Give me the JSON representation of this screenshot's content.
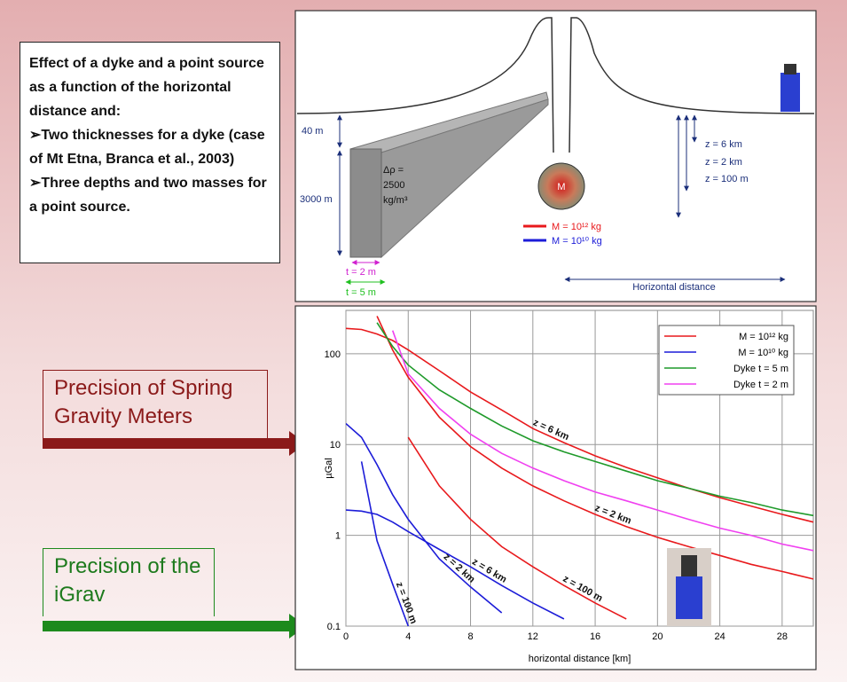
{
  "intro": {
    "heading": "Effect of a dyke and a point source as a function of the horizontal distance and:",
    "bullets": [
      "Two thicknesses for a dyke (case of Mt Etna, Branca et al., 2003)",
      "Three depths and two masses for a point source."
    ]
  },
  "precision_labels": [
    "Precision of Spring Gravity Meters",
    "Precision of the iGrav"
  ],
  "diagram": {
    "depth_top": "40 m",
    "depth_dyke": "3000 m",
    "density": [
      "Δρ =",
      "2500",
      "kg/m³"
    ],
    "mass": "M",
    "thicknesses": [
      "t = 2 m",
      "t = 5 m"
    ],
    "depths": [
      "z = 6 km",
      "z = 2 km",
      "z = 100 m"
    ],
    "masses": [
      "M = 10¹² kg",
      "M = 10¹⁰ kg"
    ],
    "distance": "Horizontal distance"
  },
  "chart_data": {
    "type": "line",
    "y_label": "µGal",
    "x_label": "horizontal distance [km]",
    "log_y": true,
    "grid": true,
    "legend": "upper right",
    "xlim": [
      0,
      30
    ],
    "xticks": [
      0,
      4,
      8,
      12,
      16,
      20,
      24,
      28
    ],
    "ylim": [
      0.1,
      300
    ],
    "yticks": [
      0.1,
      1,
      10,
      100
    ],
    "x": [
      0,
      1,
      2,
      3,
      4,
      6,
      8,
      10,
      12,
      14,
      16,
      18,
      20,
      22,
      24,
      26,
      28,
      30
    ],
    "series": [
      {
        "name": "M = 10¹² kg",
        "color": "#e8191c",
        "curves": [
          {
            "label": "z = 6 km",
            "values": [
              190,
              185,
              165,
              140,
              110,
              65,
              38,
              24,
              15,
              10.5,
              7.5,
              5.6,
              4.3,
              3.3,
              2.6,
              2.1,
              1.7,
              1.4
            ]
          },
          {
            "label": "z = 2 km",
            "values": [
              null,
              null,
              260,
              110,
              55,
              20,
              9.5,
              5.5,
              3.5,
              2.4,
              1.7,
              1.25,
              0.95,
              0.75,
              0.6,
              0.48,
              0.4,
              0.33
            ]
          },
          {
            "label": "z = 100 m",
            "values": [
              null,
              null,
              null,
              null,
              12,
              3.5,
              1.5,
              0.75,
              0.45,
              0.28,
              0.18,
              0.12,
              null,
              null,
              null,
              null,
              null,
              null
            ]
          }
        ]
      },
      {
        "name": "M = 10¹⁰ kg",
        "color": "#1c1cd8",
        "curves": [
          {
            "label": "z = 6 km",
            "values": [
              1.9,
              1.85,
              1.7,
              1.4,
              1.1,
              0.7,
              0.45,
              0.28,
              0.18,
              0.12,
              null,
              null,
              null,
              null,
              null,
              null,
              null,
              null
            ]
          },
          {
            "label": "z = 2 km",
            "values": [
              17,
              12,
              6,
              2.8,
              1.5,
              0.55,
              0.27,
              0.14,
              null,
              null,
              null,
              null,
              null,
              null,
              null,
              null,
              null,
              null
            ]
          },
          {
            "label": "z = 100 m",
            "values": [
              null,
              6.5,
              0.87,
              0.29,
              0.1,
              null,
              null,
              null,
              null,
              null,
              null,
              null,
              null,
              null,
              null,
              null,
              null,
              null
            ]
          }
        ]
      },
      {
        "name": "Dyke t = 5 m",
        "color": "#1f9a2a",
        "curves": [
          {
            "values": [
              null,
              null,
              220,
              120,
              75,
              40,
              25,
              16,
              11,
              8.3,
              6.5,
              5.1,
              4,
              3.3,
              2.7,
              2.3,
              1.9,
              1.65
            ]
          }
        ]
      },
      {
        "name": "Dyke t = 2 m",
        "color": "#f040f0",
        "curves": [
          {
            "values": [
              null,
              null,
              null,
              180,
              60,
              25,
              13,
              8,
              5.5,
              4,
              3,
              2.4,
              1.9,
              1.5,
              1.2,
              1,
              0.8,
              0.68
            ]
          }
        ]
      }
    ]
  }
}
